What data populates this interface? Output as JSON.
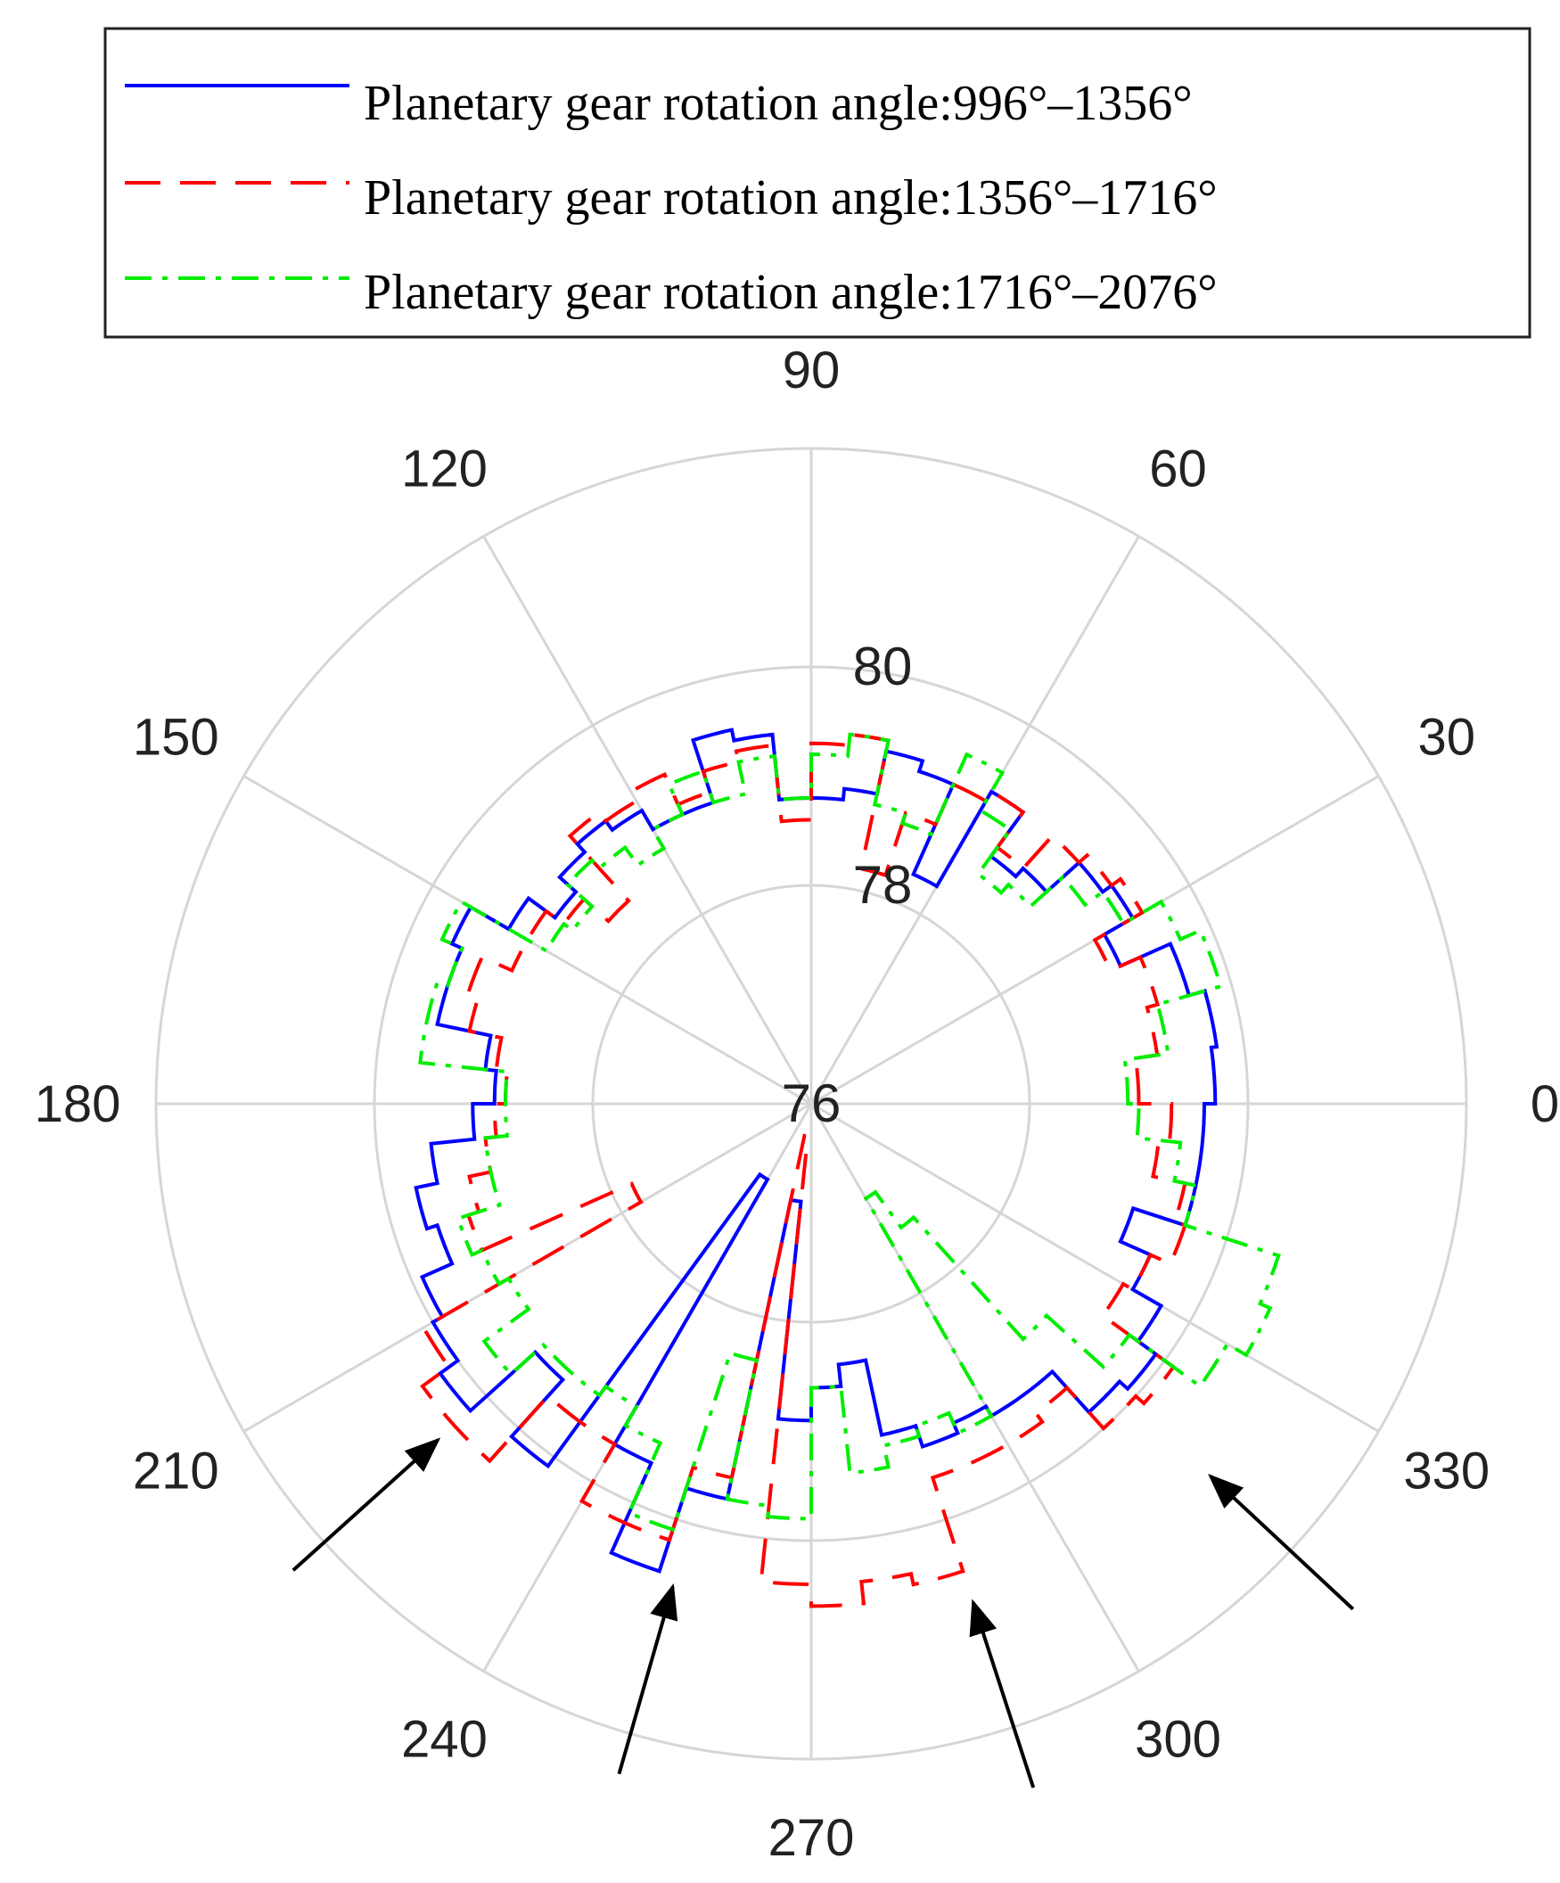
{
  "chart_data": {
    "type": "polar-line",
    "title": "",
    "r_axis": {
      "range": [
        76,
        82
      ],
      "ticks": [
        76,
        78,
        80,
        82
      ],
      "tick_labels": [
        "76",
        "78",
        "80"
      ]
    },
    "theta_axis": {
      "ticks": [
        0,
        30,
        60,
        90,
        120,
        150,
        180,
        210,
        240,
        270,
        300,
        330
      ],
      "tick_labels": [
        "0",
        "30",
        "60",
        "90",
        "120",
        "150",
        "180",
        "210",
        "240",
        "270",
        "300",
        "330"
      ]
    },
    "grid": true,
    "legend": {
      "placement": "top",
      "entries": [
        "Planetary gear rotation angle:996°–1356°",
        "Planetary gear rotation angle:1356°–1716°",
        "Planetary gear rotation angle:1716°–2076°"
      ]
    },
    "annotations": [
      {
        "type": "arrow",
        "target_theta": 222,
        "target_r": 80.6
      },
      {
        "type": "arrow",
        "target_theta": 254,
        "target_r": 80.6
      },
      {
        "type": "arrow",
        "target_theta": 288,
        "target_r": 80.8
      },
      {
        "type": "arrow",
        "target_theta": 317,
        "target_r": 81.0
      }
    ],
    "series": [
      {
        "name": "Planetary gear rotation angle:996°–1356°",
        "color": "#0000ff",
        "style": "solid",
        "theta": [
          0,
          8,
          16,
          24,
          30,
          36,
          42,
          48,
          54,
          60,
          66,
          72,
          78,
          84,
          90,
          96,
          102,
          108,
          114,
          120,
          126,
          132,
          138,
          144,
          150,
          156,
          162,
          168,
          174,
          180,
          186,
          192,
          198,
          204,
          210,
          216,
          222,
          228,
          234,
          240,
          246,
          252,
          258,
          264,
          270,
          276,
          282,
          288,
          294,
          300,
          306,
          312,
          318,
          324,
          330,
          336,
          342,
          348,
          354
        ],
        "r": [
          79.7,
          79.75,
          79.6,
          79.1,
          79.4,
          79.3,
          78.9,
          78.8,
          79.3,
          78.3,
          79.2,
          79.3,
          78.9,
          78.8,
          78.8,
          79.4,
          79.5,
          78.9,
          78.9,
          79.1,
          79.2,
          79.1,
          78.9,
          79.2,
          79.6,
          79.5,
          79.5,
          79.0,
          78.9,
          79.1,
          79.5,
          79.7,
          79.6,
          79.9,
          80.0,
          80.2,
          79.4,
          80.1,
          76.8,
          79.6,
          80.5,
          79.7,
          76.9,
          78.9,
          78.6,
          78.4,
          79.1,
          79.3,
          79.2,
          79.3,
          79.3,
          79.8,
          79.9,
          79.7,
          79.4,
          79.1,
          79.6,
          79.6,
          79.6
        ]
      },
      {
        "name": "Planetary gear rotation angle:1356°–1716°",
        "color": "#ff0000",
        "style": "dashed",
        "theta": [
          0,
          8,
          16,
          24,
          30,
          36,
          42,
          48,
          54,
          60,
          66,
          72,
          78,
          84,
          90,
          96,
          102,
          108,
          114,
          120,
          126,
          132,
          138,
          144,
          150,
          156,
          162,
          168,
          174,
          180,
          186,
          192,
          198,
          204,
          210,
          216,
          222,
          228,
          234,
          240,
          246,
          252,
          258,
          264,
          270,
          276,
          282,
          288,
          294,
          300,
          306,
          312,
          318,
          324,
          330,
          336,
          342,
          348,
          354
        ],
        "r": [
          79.0,
          79.2,
          79.3,
          79.0,
          79.5,
          79.4,
          79.3,
          78.9,
          79.3,
          79.2,
          78.8,
          78.2,
          79.4,
          79.3,
          78.6,
          79.3,
          79.2,
          79.0,
          79.3,
          79.2,
          79.3,
          78.5,
          78.8,
          79.0,
          79.0,
          79.3,
          79.2,
          78.9,
          78.8,
          78.9,
          79.0,
          79.2,
          79.3,
          77.8,
          80.1,
          80.4,
          80.4,
          79.6,
          79.6,
          80.2,
          80.2,
          79.5,
          76.3,
          80.4,
          80.6,
          80.4,
          80.5,
          79.6,
          79.6,
          79.6,
          79.5,
          80.0,
          80.1,
          79.3,
          79.4,
          79.6,
          79.5,
          79.2,
          79.3
        ]
      },
      {
        "name": "Planetary gear rotation angle:1716°–2076°",
        "color": "#00ee00",
        "style": "dashdot",
        "theta": [
          0,
          8,
          16,
          24,
          30,
          36,
          42,
          48,
          54,
          60,
          66,
          72,
          78,
          84,
          90,
          96,
          102,
          108,
          114,
          120,
          126,
          132,
          138,
          144,
          150,
          156,
          162,
          168,
          174,
          180,
          186,
          192,
          198,
          204,
          210,
          216,
          222,
          228,
          234,
          240,
          246,
          252,
          258,
          264,
          270,
          276,
          282,
          288,
          294,
          300,
          306,
          312,
          318,
          324,
          330,
          336,
          342,
          348,
          354
        ],
        "r": [
          78.9,
          79.3,
          79.9,
          79.7,
          79.3,
          79.1,
          78.7,
          78.6,
          79.1,
          79.5,
          78.7,
          78.8,
          79.4,
          79.2,
          78.8,
          79.2,
          78.9,
          79.2,
          78.9,
          78.7,
          78.9,
          79.0,
          78.7,
          78.8,
          79.7,
          79.5,
          79.6,
          79.6,
          78.8,
          78.8,
          79.0,
          79.0,
          79.4,
          79.3,
          79.2,
          79.7,
          79.3,
          79.3,
          79.2,
          79.4,
          80.1,
          78.4,
          79.7,
          79.8,
          78.6,
          79.4,
          79.2,
          79.1,
          79.3,
          77.0,
          77.4,
          78.9,
          79.6,
          80.4,
          80.6,
          80.5,
          79.6,
          79.4,
          79.0
        ]
      }
    ]
  }
}
